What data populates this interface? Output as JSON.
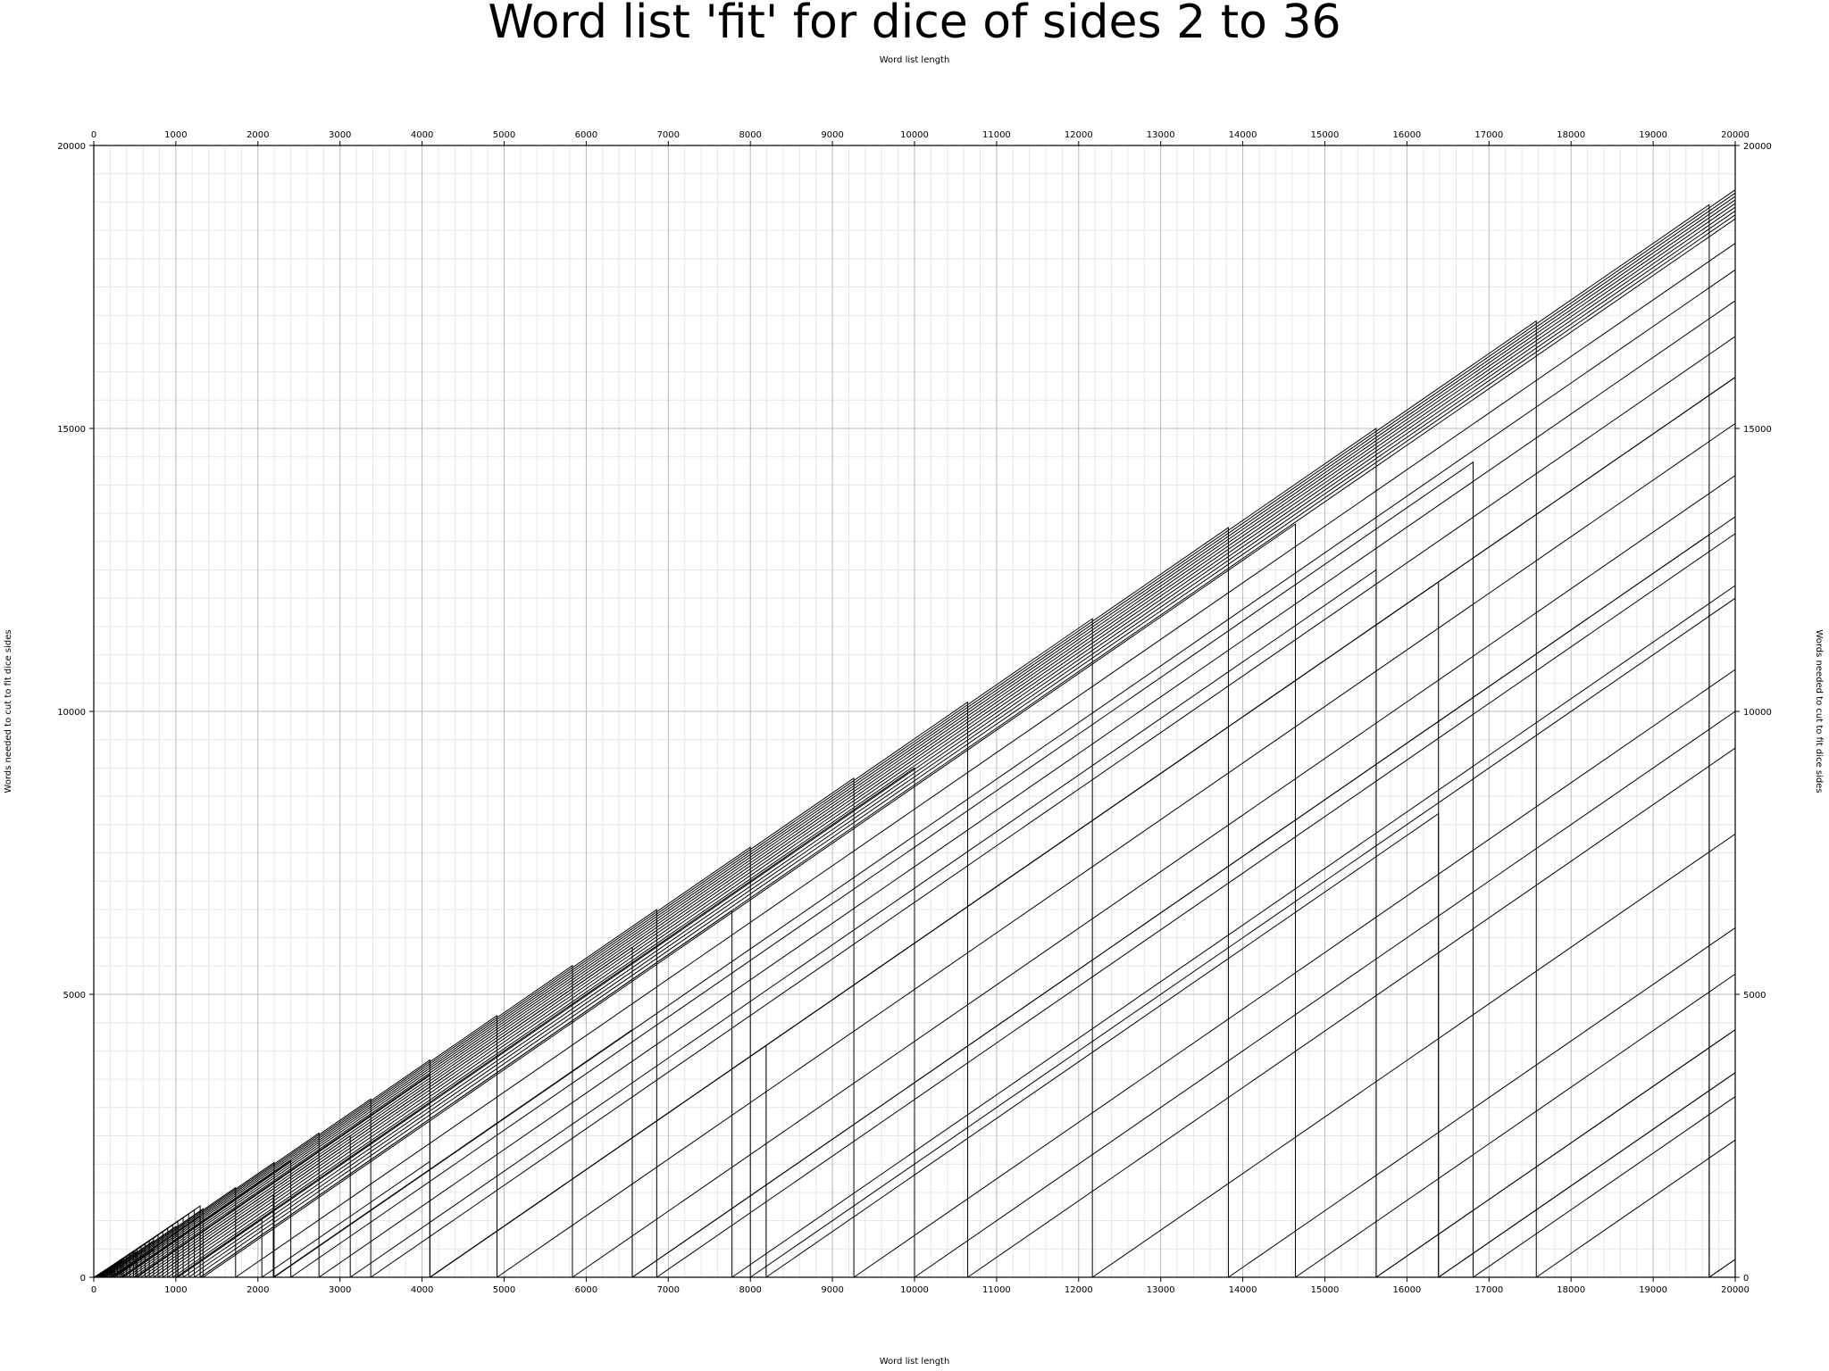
{
  "chart_data": {
    "type": "line",
    "title": "Word list 'fit' for dice of sides 2 to 36",
    "xlabel_top": "Word list length",
    "xlabel": "Word list length",
    "ylabel": "Words needed to cut to fit dice sides",
    "ylabel_right": "Words needed to cut to fit dice sides",
    "xlim": [
      0,
      20000
    ],
    "ylim": [
      0,
      20000
    ],
    "x_ticks": [
      "0",
      "1000",
      "2000",
      "3000",
      "4000",
      "5000",
      "6000",
      "7000",
      "8000",
      "9000",
      "10000",
      "11000",
      "12000",
      "13000",
      "14000",
      "15000",
      "16000",
      "17000",
      "18000",
      "19000",
      "20000"
    ],
    "y_ticks": [
      "0",
      "5000",
      "10000",
      "15000",
      "20000"
    ],
    "x_tick_values": [
      0,
      1000,
      2000,
      3000,
      4000,
      5000,
      6000,
      7000,
      8000,
      9000,
      10000,
      11000,
      12000,
      13000,
      14000,
      15000,
      16000,
      17000,
      18000,
      19000,
      20000
    ],
    "y_tick_values": [
      0,
      5000,
      10000,
      15000,
      20000
    ],
    "x_minor_step": 200,
    "y_minor_step": 500,
    "grid": true,
    "series_color": "#000000",
    "sides": [
      2,
      3,
      4,
      5,
      6,
      7,
      8,
      9,
      10,
      11,
      12,
      13,
      14,
      15,
      16,
      17,
      18,
      19,
      20,
      21,
      22,
      23,
      24,
      25,
      26,
      27,
      28,
      29,
      30,
      31,
      32,
      33,
      34,
      35,
      36
    ],
    "series_note": "y = x minus the largest (sides^k) that does not exceed x, for each dice side count",
    "dice_rolls_max": 15
  }
}
